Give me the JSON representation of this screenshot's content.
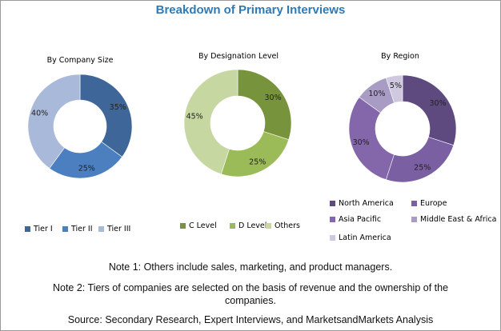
{
  "title": "Breakdown of Primary Interviews",
  "chart_data": [
    {
      "type": "pie",
      "subtype": "donut",
      "title": "By Company Size",
      "categories": [
        "Tier I",
        "Tier II",
        "Tier III"
      ],
      "values": [
        35,
        25,
        40
      ],
      "labels": [
        "35%",
        "25%",
        "40%"
      ],
      "colors": [
        "#3f6699",
        "#4b7fc0",
        "#a9b9da"
      ],
      "legend": "bottom"
    },
    {
      "type": "pie",
      "subtype": "donut",
      "title": "By Designation Level",
      "categories": [
        "C Level",
        "D Level",
        "Others"
      ],
      "values": [
        30,
        25,
        45
      ],
      "labels": [
        "30%",
        "25%",
        "45%"
      ],
      "colors": [
        "#77933c",
        "#9bbb59",
        "#c6d7a2"
      ],
      "legend": "bottom"
    },
    {
      "type": "pie",
      "subtype": "donut",
      "title": "By Region",
      "categories": [
        "North America",
        "Europe",
        "Asia Pacific",
        "Middle East & Africa",
        "Latin America"
      ],
      "values": [
        30,
        25,
        30,
        10,
        5
      ],
      "labels": [
        "30%",
        "25%",
        "30%",
        "10%",
        "5%"
      ],
      "colors": [
        "#5f4a80",
        "#7a5fa3",
        "#8467aa",
        "#a99cc4",
        "#cfc8de"
      ],
      "legend": "bottom"
    }
  ],
  "notes": [
    "Note 1: Others include sales, marketing, and product managers.",
    "Note 2: Tiers of companies are selected on the basis of revenue and the ownership of the companies.",
    "Source: Secondary Research, Expert Interviews, and MarketsandMarkets Analysis"
  ]
}
